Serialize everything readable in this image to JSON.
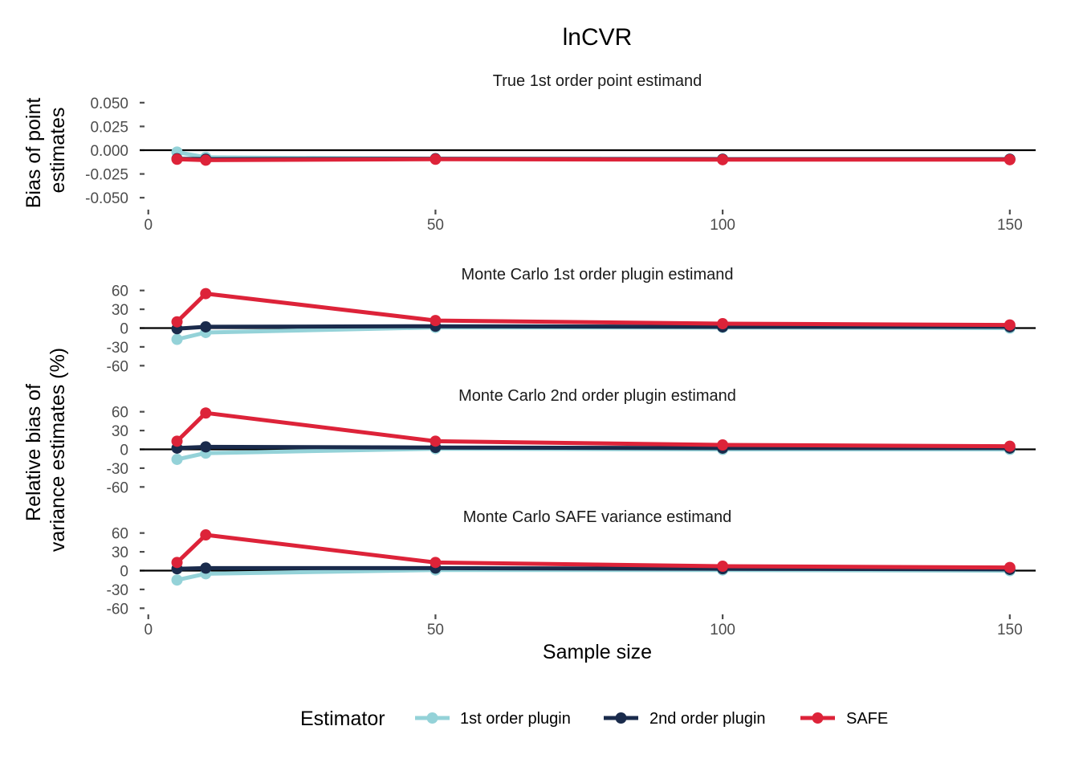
{
  "chart_data": {
    "type": "line",
    "title": "lnCVR",
    "xlabel": "Sample size",
    "xlim": [
      -1.5,
      154.5
    ],
    "x_ticks": [
      0,
      50,
      100,
      150
    ],
    "x": [
      5,
      10,
      50,
      100,
      150
    ],
    "legend": {
      "title": "Estimator",
      "position": "bottom",
      "entries": [
        "1st order plugin",
        "2nd order plugin",
        "SAFE"
      ]
    },
    "colors": {
      "1st order plugin": "#94D2D8",
      "2nd order plugin": "#1A2B4C",
      "SAFE": "#DD2339",
      "zero_line": "#000000",
      "tick": "#4d4d4d"
    },
    "row_labels": [
      {
        "lines": [
          "Bias of point",
          "estimates"
        ]
      },
      {
        "lines": [
          "Relative bias of",
          "variance estimates (%)"
        ]
      }
    ],
    "panels": [
      {
        "facet": "True 1st order point estimand",
        "ylim": [
          -0.06,
          0.06
        ],
        "y_ticks": [
          -0.05,
          -0.025,
          0,
          0.025,
          0.05
        ],
        "y_tick_labels": [
          "-0.050",
          "-0.025",
          "0.000",
          "0.025",
          "0.050"
        ],
        "series": [
          {
            "name": "1st order plugin",
            "values": [
              -0.002,
              -0.0075,
              -0.009,
              -0.0095,
              -0.0095
            ]
          },
          {
            "name": "2nd order plugin",
            "values": [
              -0.009,
              -0.0095,
              -0.009,
              -0.0095,
              -0.0095
            ]
          },
          {
            "name": "SAFE",
            "values": [
              -0.0095,
              -0.0105,
              -0.0095,
              -0.01,
              -0.01
            ]
          }
        ]
      },
      {
        "facet": "Monte Carlo 1st order plugin estimand",
        "ylim": [
          -66,
          66
        ],
        "y_ticks": [
          -60,
          -30,
          0,
          30,
          60
        ],
        "y_tick_labels": [
          "-60",
          "-30",
          "0",
          "30",
          "60"
        ],
        "series": [
          {
            "name": "1st order plugin",
            "values": [
              -18,
              -7,
              1,
              1,
              0
            ]
          },
          {
            "name": "2nd order plugin",
            "values": [
              -1,
              2,
              3,
              2,
              2
            ]
          },
          {
            "name": "SAFE",
            "values": [
              10,
              55,
              12,
              7,
              5
            ]
          }
        ]
      },
      {
        "facet": "Monte Carlo 2nd order plugin estimand",
        "ylim": [
          -66,
          66
        ],
        "y_ticks": [
          -60,
          -30,
          0,
          30,
          60
        ],
        "y_tick_labels": [
          "-60",
          "-30",
          "0",
          "30",
          "60"
        ],
        "series": [
          {
            "name": "1st order plugin",
            "values": [
              -16,
              -6,
              1,
              0,
              0
            ]
          },
          {
            "name": "2nd order plugin",
            "values": [
              2,
              4,
              3,
              2,
              2
            ]
          },
          {
            "name": "SAFE",
            "values": [
              13,
              58,
              13,
              7,
              5
            ]
          }
        ]
      },
      {
        "facet": "Monte Carlo SAFE variance estimand",
        "ylim": [
          -66,
          66
        ],
        "y_ticks": [
          -60,
          -30,
          0,
          30,
          60
        ],
        "y_tick_labels": [
          "-60",
          "-30",
          "0",
          "30",
          "60"
        ],
        "series": [
          {
            "name": "1st order plugin",
            "values": [
              -15,
              -5,
              1,
              1,
              0
            ]
          },
          {
            "name": "2nd order plugin",
            "values": [
              3,
              4,
              4,
              3,
              2
            ]
          },
          {
            "name": "SAFE",
            "values": [
              13,
              57,
              13,
              7,
              5
            ]
          }
        ]
      }
    ]
  }
}
